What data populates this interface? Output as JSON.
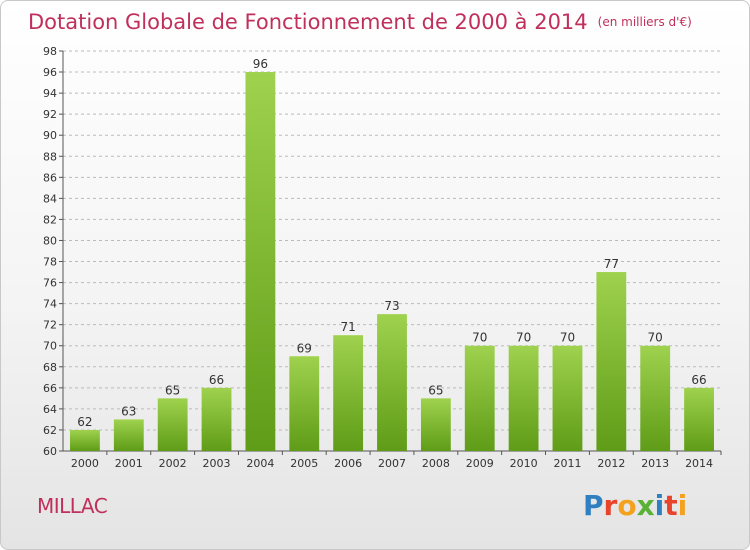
{
  "header": {
    "title": "Dotation Globale de Fonctionnement de 2000 à 2014",
    "unit": "(en milliers d'€)"
  },
  "footer": {
    "commune": "MILLAC",
    "logo": "Proxiti"
  },
  "colors": {
    "title": "#c0305c",
    "bar_light": "#9fd24e",
    "bar_dark": "#5f9c17",
    "axis": "#555555",
    "grid": "#bbbbbb"
  },
  "chart_data": {
    "type": "bar",
    "title": "Dotation Globale de Fonctionnement de 2000 à 2014",
    "xlabel": "",
    "ylabel": "",
    "categories": [
      "2000",
      "2001",
      "2002",
      "2003",
      "2004",
      "2005",
      "2006",
      "2007",
      "2008",
      "2009",
      "2010",
      "2011",
      "2012",
      "2013",
      "2014"
    ],
    "values": [
      62,
      63,
      65,
      66,
      96,
      69,
      71,
      73,
      65,
      70,
      70,
      70,
      77,
      70,
      66
    ],
    "ylim": [
      60,
      98
    ],
    "ytick_step": 2,
    "grid": true,
    "legend": "none",
    "data_labels": true
  }
}
